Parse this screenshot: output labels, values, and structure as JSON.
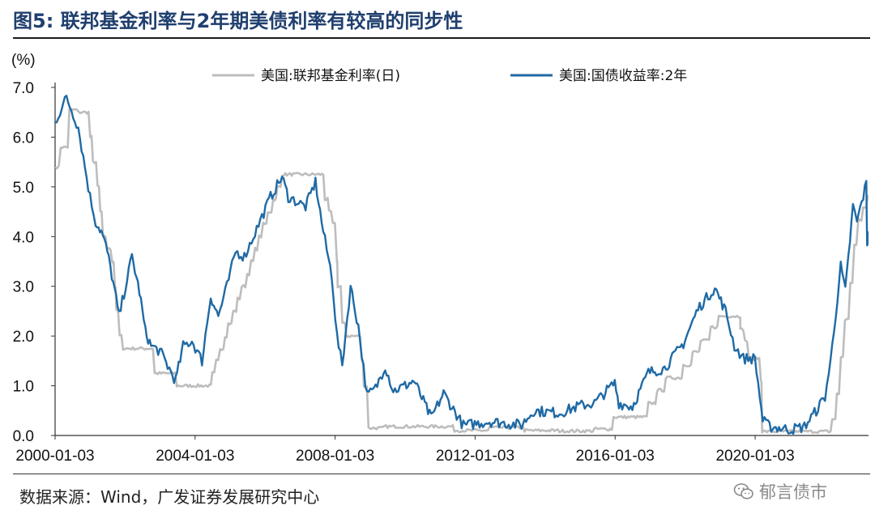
{
  "figure": {
    "title": "图5:  联邦基金利率与2年期美债利率有较高的同步性",
    "unit_label": "(%)",
    "source": "数据来源：Wind，广发证券发展研究中心",
    "watermark": "郁言债市"
  },
  "chart_data": {
    "type": "line",
    "title": "图5:  联邦基金利率与2年期美债利率有较高的同步性",
    "ylabel": "(%)",
    "xlabel": "",
    "xlim": [
      "2000-01-03",
      "2023-03-31"
    ],
    "ylim": [
      0,
      7
    ],
    "yticks": [
      "0.0",
      "1.0",
      "2.0",
      "3.0",
      "4.0",
      "5.0",
      "6.0",
      "7.0"
    ],
    "xticks": [
      "2000-01-03",
      "2004-01-03",
      "2008-01-03",
      "2012-01-03",
      "2016-01-03",
      "2020-01-03"
    ],
    "grid": false,
    "legend": "top",
    "series": [
      {
        "name": "美国:联邦基金利率(日)",
        "color": "#bdbdbd",
        "points": [
          [
            "2000-01-03",
            5.4
          ],
          [
            "2000-03-01",
            5.8
          ],
          [
            "2000-06-01",
            6.55
          ],
          [
            "2000-09-01",
            6.5
          ],
          [
            "2000-12-01",
            6.5
          ],
          [
            "2001-01-03",
            6.0
          ],
          [
            "2001-02-01",
            5.5
          ],
          [
            "2001-03-21",
            5.0
          ],
          [
            "2001-04-19",
            4.5
          ],
          [
            "2001-05-16",
            4.0
          ],
          [
            "2001-06-28",
            3.75
          ],
          [
            "2001-08-22",
            3.5
          ],
          [
            "2001-09-18",
            3.0
          ],
          [
            "2001-10-03",
            2.5
          ],
          [
            "2001-11-07",
            2.0
          ],
          [
            "2001-12-12",
            1.75
          ],
          [
            "2002-06-01",
            1.75
          ],
          [
            "2002-11-07",
            1.25
          ],
          [
            "2003-06-26",
            1.0
          ],
          [
            "2004-06-01",
            1.0
          ],
          [
            "2004-07-01",
            1.25
          ],
          [
            "2004-08-10",
            1.5
          ],
          [
            "2004-09-21",
            1.75
          ],
          [
            "2004-11-10",
            2.0
          ],
          [
            "2004-12-14",
            2.25
          ],
          [
            "2005-02-02",
            2.5
          ],
          [
            "2005-03-22",
            2.75
          ],
          [
            "2005-05-03",
            3.0
          ],
          [
            "2005-06-30",
            3.25
          ],
          [
            "2005-08-09",
            3.5
          ],
          [
            "2005-09-20",
            3.75
          ],
          [
            "2005-11-01",
            4.0
          ],
          [
            "2005-12-13",
            4.25
          ],
          [
            "2006-01-31",
            4.5
          ],
          [
            "2006-03-28",
            4.75
          ],
          [
            "2006-05-10",
            5.0
          ],
          [
            "2006-06-29",
            5.25
          ],
          [
            "2007-08-01",
            5.25
          ],
          [
            "2007-09-18",
            4.75
          ],
          [
            "2007-10-31",
            4.5
          ],
          [
            "2007-12-11",
            4.25
          ],
          [
            "2008-01-22",
            3.5
          ],
          [
            "2008-01-30",
            3.0
          ],
          [
            "2008-03-18",
            2.25
          ],
          [
            "2008-04-30",
            2.0
          ],
          [
            "2008-09-01",
            2.0
          ],
          [
            "2008-10-08",
            1.5
          ],
          [
            "2008-10-29",
            1.0
          ],
          [
            "2008-12-16",
            0.15
          ],
          [
            "2009-06-01",
            0.18
          ],
          [
            "2010-06-01",
            0.18
          ],
          [
            "2011-06-01",
            0.1
          ],
          [
            "2012-06-01",
            0.16
          ],
          [
            "2013-06-01",
            0.1
          ],
          [
            "2014-06-01",
            0.09
          ],
          [
            "2015-06-01",
            0.13
          ],
          [
            "2015-12-17",
            0.37
          ],
          [
            "2016-12-15",
            0.65
          ],
          [
            "2017-03-16",
            0.91
          ],
          [
            "2017-06-15",
            1.16
          ],
          [
            "2017-12-14",
            1.42
          ],
          [
            "2018-03-22",
            1.68
          ],
          [
            "2018-06-14",
            1.91
          ],
          [
            "2018-09-27",
            2.18
          ],
          [
            "2018-12-20",
            2.4
          ],
          [
            "2019-07-31",
            2.4
          ],
          [
            "2019-08-01",
            2.13
          ],
          [
            "2019-09-19",
            1.9
          ],
          [
            "2019-10-31",
            1.55
          ],
          [
            "2020-03-03",
            1.1
          ],
          [
            "2020-03-16",
            0.08
          ],
          [
            "2021-06-01",
            0.08
          ],
          [
            "2022-03-17",
            0.33
          ],
          [
            "2022-05-05",
            0.83
          ],
          [
            "2022-06-16",
            1.58
          ],
          [
            "2022-07-28",
            2.33
          ],
          [
            "2022-09-22",
            3.08
          ],
          [
            "2022-11-03",
            3.83
          ],
          [
            "2022-12-15",
            4.33
          ],
          [
            "2023-02-02",
            4.58
          ],
          [
            "2023-03-23",
            4.83
          ]
        ]
      },
      {
        "name": "美国:国债收益率:2年",
        "color": "#1f6aa5",
        "points": [
          [
            "2000-01-03",
            6.3
          ],
          [
            "2000-05-01",
            6.8
          ],
          [
            "2000-09-01",
            6.2
          ],
          [
            "2001-01-01",
            4.8
          ],
          [
            "2001-03-01",
            4.3
          ],
          [
            "2001-05-01",
            4.1
          ],
          [
            "2001-07-01",
            3.7
          ],
          [
            "2001-09-17",
            2.9
          ],
          [
            "2001-11-01",
            2.4
          ],
          [
            "2002-03-15",
            3.6
          ],
          [
            "2002-06-01",
            2.9
          ],
          [
            "2002-08-01",
            2.1
          ],
          [
            "2002-10-01",
            1.8
          ],
          [
            "2003-01-01",
            1.7
          ],
          [
            "2003-06-13",
            1.1
          ],
          [
            "2003-09-01",
            1.8
          ],
          [
            "2003-12-01",
            1.9
          ],
          [
            "2004-03-15",
            1.5
          ],
          [
            "2004-06-14",
            2.8
          ],
          [
            "2004-09-01",
            2.4
          ],
          [
            "2004-12-01",
            3.0
          ],
          [
            "2005-03-01",
            3.7
          ],
          [
            "2005-06-01",
            3.6
          ],
          [
            "2005-09-01",
            4.0
          ],
          [
            "2005-12-01",
            4.4
          ],
          [
            "2006-03-01",
            4.8
          ],
          [
            "2006-06-28",
            5.2
          ],
          [
            "2006-09-01",
            4.8
          ],
          [
            "2006-12-01",
            4.7
          ],
          [
            "2007-03-01",
            4.6
          ],
          [
            "2007-06-12",
            5.1
          ],
          [
            "2007-09-01",
            4.1
          ],
          [
            "2007-12-01",
            3.2
          ],
          [
            "2008-01-22",
            2.0
          ],
          [
            "2008-03-17",
            1.4
          ],
          [
            "2008-06-12",
            3.0
          ],
          [
            "2008-09-01",
            2.2
          ],
          [
            "2008-12-01",
            0.8
          ],
          [
            "2009-03-01",
            0.95
          ],
          [
            "2009-06-08",
            1.4
          ],
          [
            "2009-09-01",
            0.9
          ],
          [
            "2010-01-01",
            1.0
          ],
          [
            "2010-04-05",
            1.1
          ],
          [
            "2010-10-01",
            0.35
          ],
          [
            "2011-02-08",
            0.85
          ],
          [
            "2011-09-01",
            0.2
          ],
          [
            "2012-06-01",
            0.28
          ],
          [
            "2013-05-01",
            0.21
          ],
          [
            "2013-09-05",
            0.5
          ],
          [
            "2014-06-01",
            0.45
          ],
          [
            "2015-01-01",
            0.6
          ],
          [
            "2015-06-01",
            0.65
          ],
          [
            "2015-12-30",
            1.06
          ],
          [
            "2016-02-11",
            0.65
          ],
          [
            "2016-07-01",
            0.58
          ],
          [
            "2016-12-15",
            1.27
          ],
          [
            "2017-06-01",
            1.35
          ],
          [
            "2017-12-15",
            1.85
          ],
          [
            "2018-05-17",
            2.55
          ],
          [
            "2018-11-08",
            2.97
          ],
          [
            "2019-03-01",
            2.5
          ],
          [
            "2019-06-01",
            1.8
          ],
          [
            "2019-09-01",
            1.55
          ],
          [
            "2020-01-01",
            1.55
          ],
          [
            "2020-03-23",
            0.3
          ],
          [
            "2020-06-01",
            0.18
          ],
          [
            "2021-01-01",
            0.12
          ],
          [
            "2021-06-01",
            0.18
          ],
          [
            "2021-10-01",
            0.5
          ],
          [
            "2022-01-01",
            0.78
          ],
          [
            "2022-03-01",
            1.5
          ],
          [
            "2022-06-14",
            3.4
          ],
          [
            "2022-08-01",
            2.9
          ],
          [
            "2022-10-20",
            4.6
          ],
          [
            "2022-12-01",
            4.3
          ],
          [
            "2023-03-08",
            5.07
          ],
          [
            "2023-03-17",
            3.85
          ],
          [
            "2023-03-31",
            4.03
          ]
        ]
      }
    ]
  }
}
